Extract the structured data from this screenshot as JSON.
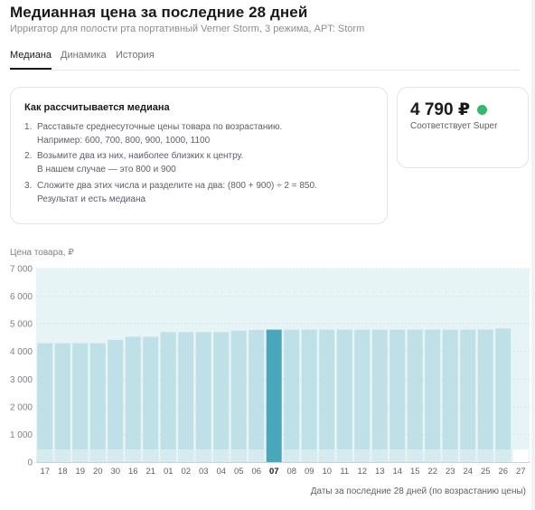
{
  "header": {
    "title": "Медианная цена за последние 28 дней",
    "subtitle": "Ирригатор для полости рта портативный Verner Storm, 3 режима, APT: Storm"
  },
  "tabs": [
    {
      "label": "Медиана",
      "active": true
    },
    {
      "label": "Динамика",
      "active": false
    },
    {
      "label": "История",
      "active": false
    }
  ],
  "info": {
    "title": "Как рассчитывается медиана",
    "steps": [
      {
        "num": "1.",
        "line1": "Расставьте среднесуточные цены товара по возрастанию.",
        "line2": "Например: 600, 700, 800, 900, 1000, 1100"
      },
      {
        "num": "2.",
        "line1": "Возьмите два из них, наиболее близких к центру.",
        "line2": "В нашем случае — это 800 и 900"
      },
      {
        "num": "3.",
        "line1": "Сложите два этих числа и разделите на два: (800 + 900) ÷ 2 = 850.",
        "line2": "Результат и есть медиана"
      }
    ]
  },
  "median": {
    "price": "4 790 ₽",
    "label": "Соответствует Super",
    "status_color": "#35b86b"
  },
  "chart_data": {
    "type": "bar",
    "ylabel": "Цена товара, ₽",
    "xlabel": "Даты за последние 28 дней (по возрастанию цены)",
    "ylim": [
      0,
      7000
    ],
    "yticks": [
      "0",
      "1 000",
      "2 000",
      "3 000",
      "4 000",
      "5 000",
      "6 000",
      "7 000"
    ],
    "grid": true,
    "categories": [
      "17",
      "18",
      "19",
      "20",
      "30",
      "16",
      "21",
      "01",
      "02",
      "03",
      "04",
      "05",
      "06",
      "07",
      "08",
      "09",
      "10",
      "11",
      "12",
      "13",
      "14",
      "15",
      "22",
      "23",
      "24",
      "25",
      "26",
      "27"
    ],
    "values": [
      4300,
      4300,
      4300,
      4300,
      4420,
      4530,
      4530,
      4700,
      4700,
      4700,
      4700,
      4750,
      4780,
      4790,
      4790,
      4790,
      4790,
      4790,
      4790,
      4790,
      4790,
      4790,
      4790,
      4790,
      4790,
      4790,
      4830,
      null
    ],
    "highlight_index": 13,
    "colors": {
      "bar": "#bfe0e7",
      "bar_highlight": "#4aa7bb",
      "background": "#e7f4f6",
      "base": "#d6ebef"
    }
  }
}
